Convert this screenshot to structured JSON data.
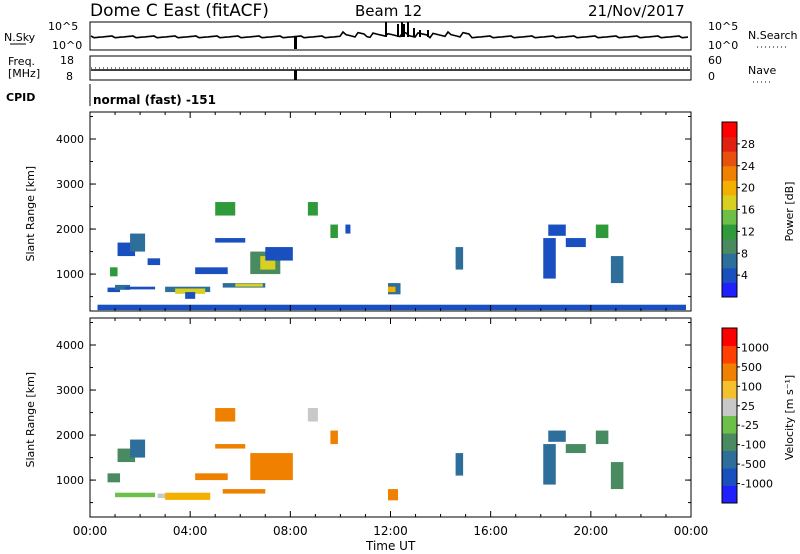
{
  "header": {
    "radar": "Dome C East (fitACF)",
    "beam": "Beam 12",
    "date": "21/Nov/2017"
  },
  "top_panels": {
    "nsky": {
      "label": "N.Sky",
      "ticks": [
        "10^5",
        "10^0"
      ]
    },
    "nsearch": {
      "label": "N.Search",
      "ticks": [
        "10^5",
        "10^0"
      ]
    },
    "freq": {
      "label_line1": "Freq.",
      "label_line2": "[MHz]",
      "ticks": [
        "18",
        "8"
      ]
    },
    "nave": {
      "label": "Nave",
      "ticks": [
        "60",
        "0"
      ]
    },
    "cpid": {
      "label": "CPID",
      "value": "normal (fast) -151"
    }
  },
  "chart_data": [
    {
      "type": "heatmap",
      "name": "power",
      "ylabel": "Slant Range [km]",
      "yticks": [
        "4000",
        "3000",
        "2000",
        "1000"
      ],
      "ylim": [
        180,
        4600
      ],
      "xlim": [
        0,
        24
      ],
      "colorbar": {
        "label": "Power [dB]",
        "ticks": [
          "28",
          "24",
          "20",
          "16",
          "12",
          "8",
          "4"
        ],
        "colors": [
          "#2020ff",
          "#1a4fc0",
          "#2e6e9a",
          "#4a8a60",
          "#2e9a3a",
          "#6cc04a",
          "#d8d020",
          "#f4b000",
          "#f08000",
          "#e85010",
          "#e02010",
          "#ff0000"
        ]
      },
      "patches": [
        {
          "t": [
            0.7,
            1.2
          ],
          "r": [
            600,
            700
          ],
          "color": "#1a4fc0"
        },
        {
          "t": [
            1.0,
            1.6
          ],
          "r": [
            650,
            760
          ],
          "color": "#2e6e9a"
        },
        {
          "t": [
            1.4,
            2.6
          ],
          "r": [
            660,
            720
          ],
          "color": "#1a4fc0"
        },
        {
          "t": [
            0.8,
            1.1
          ],
          "r": [
            950,
            1150
          ],
          "color": "#2e9a3a"
        },
        {
          "t": [
            1.1,
            1.8
          ],
          "r": [
            1400,
            1700
          ],
          "color": "#1a4fc0"
        },
        {
          "t": [
            1.6,
            2.2
          ],
          "r": [
            1500,
            1900
          ],
          "color": "#2e6e9a"
        },
        {
          "t": [
            2.3,
            2.8
          ],
          "r": [
            1200,
            1350
          ],
          "color": "#1a4fc0"
        },
        {
          "t": [
            3.0,
            4.8
          ],
          "r": [
            600,
            720
          ],
          "color": "#2e6e9a"
        },
        {
          "t": [
            3.4,
            4.6
          ],
          "r": [
            560,
            680
          ],
          "color": "#d8d020"
        },
        {
          "t": [
            3.8,
            4.2
          ],
          "r": [
            450,
            600
          ],
          "color": "#1a4fc0"
        },
        {
          "t": [
            4.2,
            5.5
          ],
          "r": [
            1000,
            1150
          ],
          "color": "#1a4fc0"
        },
        {
          "t": [
            5.0,
            6.2
          ],
          "r": [
            1700,
            1800
          ],
          "color": "#1a4fc0"
        },
        {
          "t": [
            5.0,
            5.8
          ],
          "r": [
            2300,
            2600
          ],
          "color": "#2e9a3a"
        },
        {
          "t": [
            5.3,
            7.0
          ],
          "r": [
            700,
            800
          ],
          "color": "#2e6e9a"
        },
        {
          "t": [
            5.8,
            6.9
          ],
          "r": [
            720,
            790
          ],
          "color": "#d8d020"
        },
        {
          "t": [
            6.4,
            7.6
          ],
          "r": [
            1000,
            1500
          ],
          "color": "#4a8a60"
        },
        {
          "t": [
            6.8,
            7.4
          ],
          "r": [
            1100,
            1400
          ],
          "color": "#d8d020"
        },
        {
          "t": [
            7.0,
            8.1
          ],
          "r": [
            1300,
            1600
          ],
          "color": "#1a4fc0"
        },
        {
          "t": [
            8.7,
            9.1
          ],
          "r": [
            2300,
            2600
          ],
          "color": "#2e9a3a"
        },
        {
          "t": [
            9.6,
            9.9
          ],
          "r": [
            1800,
            2100
          ],
          "color": "#2e9a3a"
        },
        {
          "t": [
            10.2,
            10.4
          ],
          "r": [
            1900,
            2100
          ],
          "color": "#1a4fc0"
        },
        {
          "t": [
            11.9,
            12.4
          ],
          "r": [
            550,
            800
          ],
          "color": "#2e6e9a"
        },
        {
          "t": [
            11.9,
            12.2
          ],
          "r": [
            600,
            720
          ],
          "color": "#f4b000"
        },
        {
          "t": [
            14.6,
            14.9
          ],
          "r": [
            1100,
            1600
          ],
          "color": "#2e6e9a"
        },
        {
          "t": [
            18.1,
            18.6
          ],
          "r": [
            900,
            1800
          ],
          "color": "#1a4fc0"
        },
        {
          "t": [
            18.3,
            19.0
          ],
          "r": [
            1850,
            2100
          ],
          "color": "#1a4fc0"
        },
        {
          "t": [
            19.0,
            19.8
          ],
          "r": [
            1600,
            1800
          ],
          "color": "#1a4fc0"
        },
        {
          "t": [
            20.2,
            20.7
          ],
          "r": [
            1800,
            2100
          ],
          "color": "#2e9a3a"
        },
        {
          "t": [
            20.8,
            21.3
          ],
          "r": [
            800,
            1400
          ],
          "color": "#2e6e9a"
        },
        {
          "t": [
            0.3,
            23.8
          ],
          "r": [
            200,
            320
          ],
          "color": "#1a4fc0"
        }
      ]
    },
    {
      "type": "heatmap",
      "name": "velocity",
      "ylabel": "Slant Range [km]",
      "yticks": [
        "4000",
        "3000",
        "2000",
        "1000"
      ],
      "ylim": [
        180,
        4600
      ],
      "xlim": [
        0,
        24
      ],
      "colorbar": {
        "label": "Velocity [m s⁻¹]",
        "ticks": [
          "1000",
          "500",
          "100",
          "25",
          "-25",
          "-100",
          "-500",
          "-1000"
        ],
        "colors": [
          "#2020ff",
          "#1a4fc0",
          "#2e6e9a",
          "#4a8a60",
          "#6cc04a",
          "#c8c8c8",
          "#f4c030",
          "#f08000",
          "#ff4000",
          "#ff0000"
        ]
      },
      "patches": [
        {
          "t": [
            0.7,
            1.2
          ],
          "r": [
            950,
            1150
          ],
          "color": "#4a8a60"
        },
        {
          "t": [
            1.1,
            1.8
          ],
          "r": [
            1400,
            1700
          ],
          "color": "#4a8a60"
        },
        {
          "t": [
            1.6,
            2.2
          ],
          "r": [
            1500,
            1900
          ],
          "color": "#2e6e9a"
        },
        {
          "t": [
            1.0,
            2.6
          ],
          "r": [
            620,
            720
          ],
          "color": "#6cc04a"
        },
        {
          "t": [
            2.7,
            3.1
          ],
          "r": [
            600,
            700
          ],
          "color": "#c8c8c8"
        },
        {
          "t": [
            3.0,
            4.8
          ],
          "r": [
            560,
            720
          ],
          "color": "#f4b000"
        },
        {
          "t": [
            4.2,
            5.5
          ],
          "r": [
            1000,
            1150
          ],
          "color": "#f08000"
        },
        {
          "t": [
            5.0,
            6.2
          ],
          "r": [
            1700,
            1800
          ],
          "color": "#f08000"
        },
        {
          "t": [
            5.0,
            5.8
          ],
          "r": [
            2300,
            2600
          ],
          "color": "#f08000"
        },
        {
          "t": [
            5.3,
            7.0
          ],
          "r": [
            700,
            800
          ],
          "color": "#f08000"
        },
        {
          "t": [
            6.4,
            8.1
          ],
          "r": [
            1000,
            1600
          ],
          "color": "#f08000"
        },
        {
          "t": [
            8.7,
            9.1
          ],
          "r": [
            2300,
            2600
          ],
          "color": "#c8c8c8"
        },
        {
          "t": [
            9.6,
            9.9
          ],
          "r": [
            1800,
            2100
          ],
          "color": "#f08000"
        },
        {
          "t": [
            11.9,
            12.3
          ],
          "r": [
            550,
            800
          ],
          "color": "#f08000"
        },
        {
          "t": [
            14.6,
            14.9
          ],
          "r": [
            1100,
            1600
          ],
          "color": "#2e6e9a"
        },
        {
          "t": [
            18.1,
            18.6
          ],
          "r": [
            900,
            1800
          ],
          "color": "#2e6e9a"
        },
        {
          "t": [
            18.3,
            19.0
          ],
          "r": [
            1850,
            2100
          ],
          "color": "#2e6e9a"
        },
        {
          "t": [
            19.0,
            19.8
          ],
          "r": [
            1600,
            1800
          ],
          "color": "#4a8a60"
        },
        {
          "t": [
            20.2,
            20.7
          ],
          "r": [
            1800,
            2100
          ],
          "color": "#4a8a60"
        },
        {
          "t": [
            20.8,
            21.3
          ],
          "r": [
            800,
            1400
          ],
          "color": "#4a8a60"
        }
      ]
    }
  ],
  "x_axis": {
    "ticks": [
      "00:00",
      "04:00",
      "08:00",
      "12:00",
      "16:00",
      "20:00",
      "00:00"
    ],
    "label": "Time UT"
  }
}
